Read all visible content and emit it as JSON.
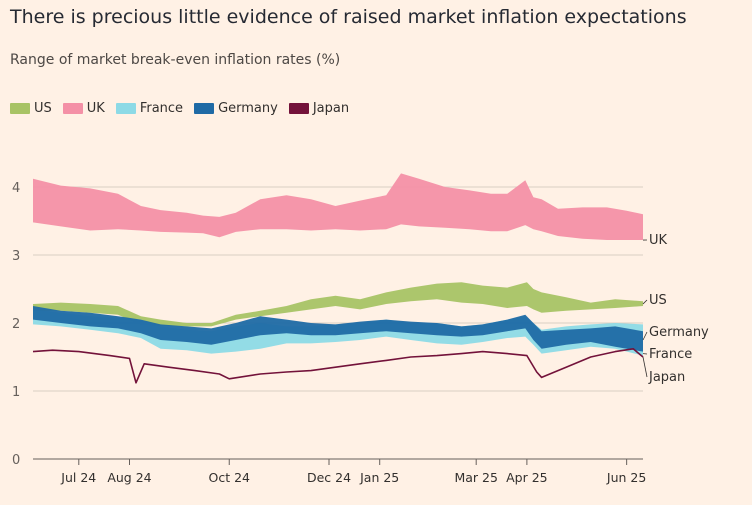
{
  "title": "There is precious little evidence of raised market inflation expectations",
  "subtitle": "Range of market break-even inflation rates (%)",
  "colors": {
    "US": "#a8c365",
    "UK": "#f490a6",
    "France": "#8ddae6",
    "Germany": "#1f6aa5",
    "Japan": "#73123a",
    "gridline": "#d9cec4",
    "axis": "#66605c"
  },
  "chart_data": {
    "type": "area",
    "ylim": [
      0,
      4.3
    ],
    "yticks": [
      0,
      1,
      2,
      3,
      4
    ],
    "xlim": [
      "2024-06-03",
      "2025-06-11"
    ],
    "xticks": [
      {
        "date": "2024-07-01",
        "label": "Jul 24"
      },
      {
        "date": "2024-08-01",
        "label": "Aug 24"
      },
      {
        "date": "2024-10-01",
        "label": "Oct 24"
      },
      {
        "date": "2024-12-01",
        "label": "Dec 24"
      },
      {
        "date": "2025-01-01",
        "label": "Jan 25"
      },
      {
        "date": "2025-03-01",
        "label": "Mar 25"
      },
      {
        "date": "2025-04-01",
        "label": "Apr 25"
      },
      {
        "date": "2025-06-01",
        "label": "Jun 25"
      }
    ],
    "legend": [
      "US",
      "UK",
      "France",
      "Germany",
      "Japan"
    ],
    "series": [
      {
        "name": "UK",
        "end_label": "UK",
        "x": [
          "2024-06-03",
          "2024-06-20",
          "2024-07-08",
          "2024-07-25",
          "2024-08-08",
          "2024-08-20",
          "2024-09-05",
          "2024-09-15",
          "2024-09-25",
          "2024-10-05",
          "2024-10-20",
          "2024-11-05",
          "2024-11-20",
          "2024-12-05",
          "2024-12-20",
          "2025-01-05",
          "2025-01-14",
          "2025-01-25",
          "2025-02-10",
          "2025-02-25",
          "2025-03-10",
          "2025-03-20",
          "2025-03-31",
          "2025-04-05",
          "2025-04-10",
          "2025-04-20",
          "2025-05-05",
          "2025-05-20",
          "2025-06-01",
          "2025-06-11"
        ],
        "high": [
          4.12,
          4.02,
          3.98,
          3.9,
          3.72,
          3.66,
          3.62,
          3.58,
          3.56,
          3.62,
          3.82,
          3.88,
          3.82,
          3.72,
          3.8,
          3.88,
          4.2,
          4.12,
          4.0,
          3.95,
          3.9,
          3.9,
          4.1,
          3.85,
          3.82,
          3.68,
          3.7,
          3.7,
          3.65,
          3.6
        ],
        "low": [
          3.48,
          3.42,
          3.36,
          3.38,
          3.36,
          3.34,
          3.33,
          3.32,
          3.26,
          3.34,
          3.38,
          3.38,
          3.36,
          3.38,
          3.36,
          3.38,
          3.45,
          3.42,
          3.4,
          3.38,
          3.35,
          3.35,
          3.44,
          3.38,
          3.35,
          3.28,
          3.24,
          3.22,
          3.22,
          3.22
        ]
      },
      {
        "name": "US",
        "end_label": "US",
        "x": [
          "2024-06-03",
          "2024-06-20",
          "2024-07-08",
          "2024-07-25",
          "2024-08-08",
          "2024-08-20",
          "2024-09-05",
          "2024-09-20",
          "2024-10-05",
          "2024-10-20",
          "2024-11-05",
          "2024-11-20",
          "2024-12-05",
          "2024-12-20",
          "2025-01-05",
          "2025-01-20",
          "2025-02-05",
          "2025-02-20",
          "2025-03-05",
          "2025-03-20",
          "2025-04-01",
          "2025-04-05",
          "2025-04-10",
          "2025-04-25",
          "2025-05-10",
          "2025-05-25",
          "2025-06-11"
        ],
        "high": [
          2.28,
          2.3,
          2.28,
          2.25,
          2.1,
          2.05,
          2.0,
          2.0,
          2.12,
          2.18,
          2.25,
          2.35,
          2.4,
          2.35,
          2.45,
          2.52,
          2.58,
          2.6,
          2.55,
          2.52,
          2.6,
          2.5,
          2.45,
          2.38,
          2.3,
          2.35,
          2.32
        ],
        "low": [
          2.18,
          2.18,
          2.15,
          2.12,
          1.98,
          1.96,
          1.95,
          1.95,
          2.05,
          2.1,
          2.15,
          2.2,
          2.25,
          2.2,
          2.28,
          2.32,
          2.35,
          2.3,
          2.28,
          2.22,
          2.25,
          2.2,
          2.15,
          2.18,
          2.2,
          2.22,
          2.25
        ]
      },
      {
        "name": "France",
        "end_label": "France",
        "x": [
          "2024-06-03",
          "2024-06-20",
          "2024-07-08",
          "2024-07-25",
          "2024-08-08",
          "2024-08-20",
          "2024-09-05",
          "2024-09-20",
          "2024-10-05",
          "2024-10-20",
          "2024-11-05",
          "2024-11-20",
          "2024-12-05",
          "2024-12-20",
          "2025-01-05",
          "2025-01-20",
          "2025-02-05",
          "2025-02-20",
          "2025-03-05",
          "2025-03-20",
          "2025-03-31",
          "2025-04-05",
          "2025-04-10",
          "2025-04-25",
          "2025-05-10",
          "2025-05-25",
          "2025-06-11"
        ],
        "high": [
          2.2,
          2.15,
          2.1,
          2.08,
          2.05,
          1.95,
          1.9,
          1.88,
          1.95,
          2.0,
          1.95,
          1.95,
          1.98,
          2.0,
          2.05,
          2.0,
          2.0,
          1.95,
          1.98,
          2.05,
          2.1,
          2.0,
          1.9,
          1.95,
          1.98,
          2.0,
          1.98
        ],
        "low": [
          1.98,
          1.95,
          1.9,
          1.85,
          1.78,
          1.62,
          1.6,
          1.55,
          1.58,
          1.62,
          1.7,
          1.7,
          1.72,
          1.75,
          1.8,
          1.75,
          1.7,
          1.68,
          1.72,
          1.78,
          1.8,
          1.68,
          1.55,
          1.6,
          1.65,
          1.62,
          1.52
        ]
      },
      {
        "name": "Germany",
        "end_label": "Germany",
        "x": [
          "2024-06-03",
          "2024-06-20",
          "2024-07-08",
          "2024-07-25",
          "2024-08-08",
          "2024-08-20",
          "2024-09-05",
          "2024-09-20",
          "2024-10-05",
          "2024-10-20",
          "2024-11-05",
          "2024-11-20",
          "2024-12-05",
          "2024-12-20",
          "2025-01-05",
          "2025-01-20",
          "2025-02-05",
          "2025-02-20",
          "2025-03-05",
          "2025-03-20",
          "2025-03-31",
          "2025-04-05",
          "2025-04-10",
          "2025-04-25",
          "2025-05-10",
          "2025-05-25",
          "2025-06-11"
        ],
        "high": [
          2.25,
          2.18,
          2.15,
          2.1,
          2.05,
          1.98,
          1.95,
          1.92,
          2.0,
          2.1,
          2.05,
          2.0,
          1.98,
          2.02,
          2.05,
          2.02,
          2.0,
          1.95,
          1.98,
          2.05,
          2.12,
          2.0,
          1.88,
          1.9,
          1.92,
          1.95,
          1.88
        ],
        "low": [
          2.05,
          2.0,
          1.95,
          1.92,
          1.85,
          1.75,
          1.72,
          1.68,
          1.75,
          1.82,
          1.85,
          1.82,
          1.82,
          1.85,
          1.88,
          1.85,
          1.82,
          1.8,
          1.82,
          1.88,
          1.92,
          1.75,
          1.62,
          1.68,
          1.72,
          1.65,
          1.58
        ]
      },
      {
        "name": "Japan",
        "end_label": "Japan",
        "x": [
          "2024-06-03",
          "2024-06-15",
          "2024-07-01",
          "2024-07-20",
          "2024-08-01",
          "2024-08-05",
          "2024-08-10",
          "2024-08-25",
          "2024-09-10",
          "2024-09-25",
          "2024-10-01",
          "2024-10-20",
          "2024-11-05",
          "2024-11-20",
          "2024-12-05",
          "2024-12-20",
          "2025-01-05",
          "2025-01-20",
          "2025-02-05",
          "2025-02-20",
          "2025-03-05",
          "2025-03-20",
          "2025-04-01",
          "2025-04-07",
          "2025-04-10",
          "2025-04-25",
          "2025-05-10",
          "2025-05-25",
          "2025-06-05",
          "2025-06-11"
        ],
        "line": [
          1.58,
          1.6,
          1.58,
          1.52,
          1.48,
          1.12,
          1.4,
          1.35,
          1.3,
          1.25,
          1.18,
          1.25,
          1.28,
          1.3,
          1.35,
          1.4,
          1.45,
          1.5,
          1.52,
          1.55,
          1.58,
          1.55,
          1.52,
          1.28,
          1.2,
          1.35,
          1.5,
          1.58,
          1.62,
          1.5
        ]
      }
    ]
  }
}
